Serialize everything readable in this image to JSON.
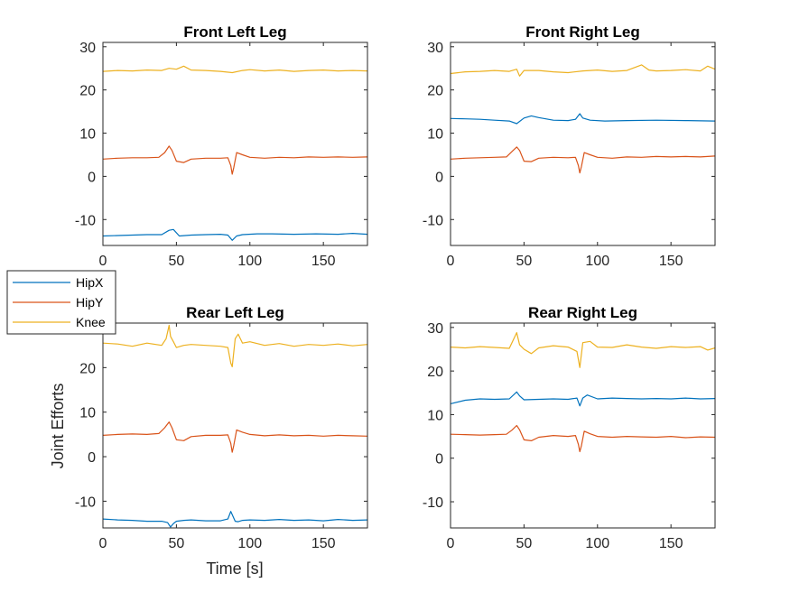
{
  "colors": {
    "HipX": "#0072BD",
    "HipY": "#D95319",
    "Knee": "#EDB120"
  },
  "legend": {
    "placement": "left-middle",
    "entries": [
      "HipX",
      "HipY",
      "Knee"
    ]
  },
  "figure_labels": {
    "ylabel": "Joint Efforts",
    "xlabel": "Time [s]"
  },
  "chart_data": [
    {
      "type": "line",
      "title": "Front Left Leg",
      "xlim": [
        0,
        180
      ],
      "ylim": [
        -16,
        31
      ],
      "xticks": [
        0,
        50,
        100,
        150
      ],
      "yticks": [
        -10,
        0,
        10,
        20,
        30
      ],
      "xlabel": "",
      "ylabel": "",
      "series": [
        {
          "name": "HipX",
          "x": [
            0,
            10,
            20,
            30,
            40,
            45,
            48,
            52,
            60,
            70,
            80,
            85,
            88,
            91,
            95,
            105,
            115,
            130,
            145,
            160,
            170,
            180
          ],
          "y": [
            -13.8,
            -13.7,
            -13.6,
            -13.5,
            -13.5,
            -12.5,
            -12.3,
            -13.8,
            -13.6,
            -13.5,
            -13.4,
            -13.6,
            -14.8,
            -13.8,
            -13.5,
            -13.3,
            -13.3,
            -13.4,
            -13.3,
            -13.4,
            -13.2,
            -13.4
          ]
        },
        {
          "name": "HipY",
          "x": [
            0,
            10,
            20,
            30,
            38,
            42,
            45,
            47,
            50,
            55,
            60,
            70,
            80,
            85,
            87,
            88,
            89,
            91,
            95,
            100,
            110,
            120,
            130,
            140,
            150,
            160,
            170,
            180
          ],
          "y": [
            4,
            4.2,
            4.3,
            4.3,
            4.4,
            5.5,
            7,
            6,
            3.5,
            3.2,
            4,
            4.2,
            4.2,
            4.3,
            2.5,
            0.5,
            2,
            5.5,
            5,
            4.4,
            4.2,
            4.4,
            4.3,
            4.5,
            4.4,
            4.5,
            4.4,
            4.5
          ]
        },
        {
          "name": "Knee",
          "x": [
            0,
            10,
            20,
            30,
            40,
            45,
            50,
            55,
            60,
            70,
            80,
            88,
            95,
            100,
            110,
            120,
            130,
            140,
            150,
            160,
            170,
            180
          ],
          "y": [
            24.3,
            24.5,
            24.4,
            24.6,
            24.5,
            25,
            24.8,
            25.5,
            24.6,
            24.5,
            24.3,
            24,
            24.5,
            24.7,
            24.4,
            24.6,
            24.3,
            24.5,
            24.6,
            24.4,
            24.5,
            24.4
          ]
        }
      ]
    },
    {
      "type": "line",
      "title": "Front Right Leg",
      "xlim": [
        0,
        180
      ],
      "ylim": [
        -16,
        31
      ],
      "xticks": [
        0,
        50,
        100,
        150
      ],
      "yticks": [
        -10,
        0,
        10,
        20,
        30
      ],
      "xlabel": "",
      "ylabel": "",
      "series": [
        {
          "name": "HipX",
          "x": [
            0,
            10,
            20,
            30,
            40,
            45,
            50,
            55,
            60,
            70,
            80,
            85,
            88,
            90,
            95,
            105,
            120,
            140,
            160,
            180
          ],
          "y": [
            13.4,
            13.3,
            13.2,
            13,
            12.8,
            12.2,
            13.5,
            14,
            13.6,
            13,
            12.9,
            13.2,
            14.5,
            13.5,
            13,
            12.8,
            12.9,
            13,
            12.9,
            12.8
          ]
        },
        {
          "name": "HipY",
          "x": [
            0,
            10,
            20,
            30,
            38,
            42,
            45,
            47,
            50,
            55,
            60,
            70,
            80,
            85,
            87,
            88,
            89,
            91,
            95,
            100,
            110,
            120,
            130,
            140,
            150,
            160,
            170,
            180
          ],
          "y": [
            4,
            4.2,
            4.3,
            4.4,
            4.5,
            5.8,
            6.8,
            6,
            3.5,
            3.4,
            4.2,
            4.4,
            4.3,
            4.4,
            2.5,
            0.8,
            2.2,
            5.5,
            5,
            4.4,
            4.2,
            4.5,
            4.4,
            4.6,
            4.5,
            4.6,
            4.5,
            4.7
          ]
        },
        {
          "name": "Knee",
          "x": [
            0,
            10,
            20,
            30,
            40,
            45,
            47,
            50,
            60,
            70,
            80,
            90,
            100,
            110,
            120,
            130,
            135,
            140,
            150,
            160,
            170,
            175,
            180
          ],
          "y": [
            23.8,
            24.2,
            24.3,
            24.5,
            24.3,
            24.8,
            23.2,
            24.5,
            24.5,
            24.2,
            24,
            24.4,
            24.6,
            24.3,
            24.5,
            25.8,
            24.6,
            24.4,
            24.5,
            24.7,
            24.4,
            25.5,
            24.8
          ]
        }
      ]
    },
    {
      "type": "line",
      "title": "Rear Left Leg",
      "xlim": [
        0,
        180
      ],
      "ylim": [
        -16,
        30
      ],
      "xticks": [
        0,
        50,
        100,
        150
      ],
      "yticks": [
        -10,
        0,
        10,
        20
      ],
      "xlabel": "Time [s]",
      "ylabel": "Joint Efforts",
      "series": [
        {
          "name": "HipX",
          "x": [
            0,
            10,
            20,
            30,
            40,
            44,
            46,
            48,
            50,
            55,
            60,
            70,
            80,
            85,
            87,
            88,
            90,
            92,
            95,
            100,
            110,
            120,
            130,
            140,
            150,
            160,
            170,
            180
          ],
          "y": [
            -14,
            -14.2,
            -14.3,
            -14.5,
            -14.5,
            -14.8,
            -15.8,
            -15,
            -14.5,
            -14.3,
            -14.2,
            -14.4,
            -14.4,
            -14,
            -12.3,
            -13,
            -14.5,
            -14.6,
            -14.3,
            -14.2,
            -14.3,
            -14.1,
            -14.3,
            -14.2,
            -14.4,
            -14.1,
            -14.3,
            -14.2
          ]
        },
        {
          "name": "HipY",
          "x": [
            0,
            10,
            20,
            30,
            38,
            42,
            45,
            47,
            50,
            55,
            60,
            70,
            80,
            85,
            87,
            88,
            89,
            91,
            95,
            100,
            110,
            120,
            130,
            140,
            150,
            160,
            170,
            180
          ],
          "y": [
            4.8,
            5,
            5.1,
            5,
            5.2,
            6.5,
            7.8,
            6.5,
            3.8,
            3.6,
            4.5,
            4.8,
            4.8,
            4.9,
            3,
            1,
            2.5,
            6,
            5.5,
            5,
            4.7,
            4.9,
            4.7,
            4.8,
            4.6,
            4.8,
            4.7,
            4.6
          ]
        },
        {
          "name": "Knee",
          "x": [
            0,
            10,
            20,
            30,
            40,
            43,
            45,
            46,
            48,
            50,
            55,
            60,
            70,
            80,
            85,
            87,
            88,
            90,
            92,
            95,
            100,
            110,
            120,
            130,
            140,
            150,
            160,
            170,
            180
          ],
          "y": [
            25.5,
            25.3,
            24.8,
            25.5,
            25,
            26.5,
            29.5,
            27,
            25.8,
            24.5,
            25,
            25.2,
            25,
            24.8,
            24.5,
            21,
            20.2,
            26.5,
            27.5,
            25.5,
            25.8,
            25,
            25.4,
            24.8,
            25.2,
            25,
            25.3,
            24.9,
            25.2
          ]
        }
      ]
    },
    {
      "type": "line",
      "title": "Rear Right Leg",
      "xlim": [
        0,
        180
      ],
      "ylim": [
        -16,
        31
      ],
      "xticks": [
        0,
        50,
        100,
        150
      ],
      "yticks": [
        -10,
        0,
        10,
        20,
        30
      ],
      "xlabel": "",
      "ylabel": "",
      "series": [
        {
          "name": "HipX",
          "x": [
            0,
            10,
            20,
            30,
            40,
            45,
            47,
            50,
            60,
            70,
            80,
            86,
            88,
            90,
            93,
            100,
            110,
            120,
            130,
            140,
            150,
            160,
            170,
            180
          ],
          "y": [
            12.5,
            13.3,
            13.6,
            13.5,
            13.6,
            15.2,
            14.3,
            13.4,
            13.5,
            13.6,
            13.5,
            13.8,
            12,
            13.8,
            14.5,
            13.6,
            13.8,
            13.7,
            13.6,
            13.7,
            13.6,
            13.8,
            13.6,
            13.7
          ]
        },
        {
          "name": "HipY",
          "x": [
            0,
            10,
            20,
            30,
            38,
            42,
            45,
            47,
            50,
            55,
            60,
            70,
            80,
            85,
            87,
            88,
            89,
            91,
            95,
            100,
            110,
            120,
            130,
            140,
            150,
            160,
            170,
            180
          ],
          "y": [
            5.5,
            5.4,
            5.3,
            5.4,
            5.5,
            6.5,
            7.5,
            6.5,
            4.2,
            4,
            4.8,
            5.2,
            5,
            5.2,
            3.2,
            1.5,
            2.8,
            6.2,
            5.6,
            5,
            4.8,
            5,
            4.9,
            4.8,
            5,
            4.7,
            4.9,
            4.8
          ]
        },
        {
          "name": "Knee",
          "x": [
            0,
            10,
            20,
            30,
            40,
            45,
            47,
            50,
            55,
            60,
            70,
            80,
            86,
            88,
            90,
            95,
            100,
            110,
            120,
            130,
            140,
            150,
            160,
            170,
            175,
            180
          ],
          "y": [
            25.5,
            25.3,
            25.6,
            25.4,
            25.2,
            28.8,
            26,
            25,
            24,
            25.3,
            25.8,
            25.5,
            24.5,
            20.8,
            26.5,
            26.8,
            25.5,
            25.4,
            26,
            25.5,
            25.2,
            25.6,
            25.4,
            25.6,
            24.8,
            25.3
          ]
        }
      ]
    }
  ]
}
